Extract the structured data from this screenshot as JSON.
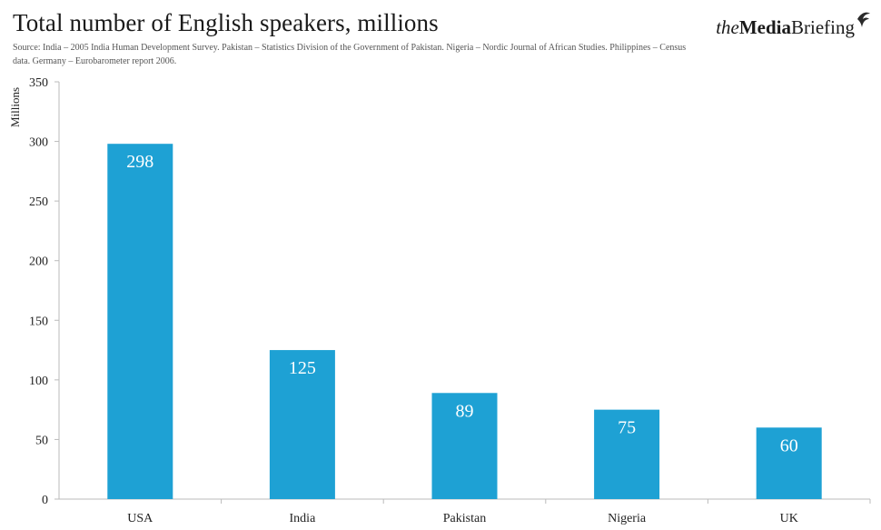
{
  "header": {
    "title": "Total number of English speakers, millions",
    "source": "Source: India – 2005 India Human Development Survey. Pakistan – Statistics Division of the Government of Pakistan. Nigeria – Nordic Journal of African Studies. Philippines – Census data. Germany – Eurobarometer report 2006."
  },
  "logo": {
    "the": "the",
    "media": "Media",
    "briefing": "Briefing",
    "icon": "bird-swoosh-icon"
  },
  "colors": {
    "bar": "#1ea1d4",
    "axis": "#bbbbbb"
  },
  "chart_data": {
    "type": "bar",
    "categories": [
      "USA",
      "India",
      "Pakistan",
      "Nigeria",
      "UK"
    ],
    "values": [
      298,
      125,
      89,
      75,
      60
    ],
    "data_labels": [
      "298",
      "125",
      "89",
      "75",
      "60"
    ],
    "title": "Total number of English speakers, millions",
    "xlabel": "",
    "ylabel": "Millions",
    "ylim": [
      0,
      350
    ],
    "yticks": [
      0,
      50,
      100,
      150,
      200,
      250,
      300,
      350
    ],
    "grid": false,
    "legend": "none"
  }
}
